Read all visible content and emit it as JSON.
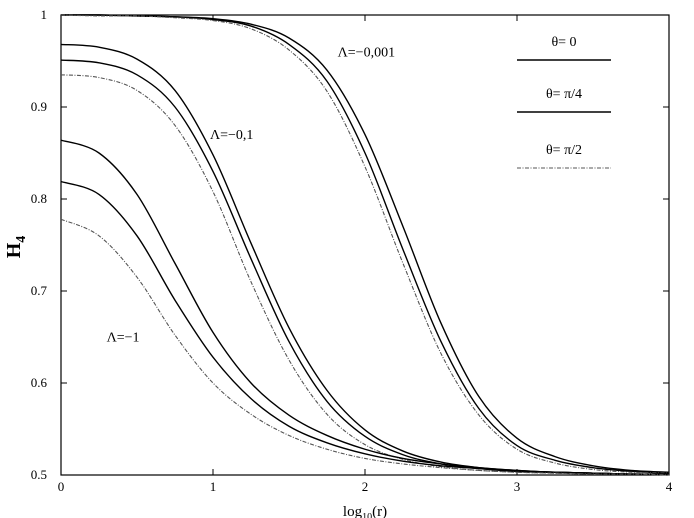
{
  "chart_data": {
    "type": "line",
    "title": "",
    "xlabel": {
      "base": "log",
      "sub": "10",
      "rest": "(r)"
    },
    "ylabel": {
      "base": "H",
      "sub": "4"
    },
    "xlim": [
      0,
      4
    ],
    "ylim": [
      0.5,
      1.0
    ],
    "x_ticks": [
      0,
      1,
      2,
      3,
      4
    ],
    "x_tick_labels": [
      "0",
      "1",
      "2",
      "3",
      "4"
    ],
    "y_ticks": [
      0.5,
      0.6,
      0.7,
      0.8,
      0.9,
      1.0
    ],
    "y_tick_labels": [
      "0.5",
      "0.6",
      "0.7",
      "0.8",
      "0.9",
      "1"
    ],
    "grid": false,
    "legend": {
      "placement": "top-right",
      "entries": [
        {
          "label": "θ= 0",
          "style": "solid",
          "color": "#000000"
        },
        {
          "label": "θ= π/4",
          "style": "solid",
          "color": "#111111"
        },
        {
          "label": "θ= π/2",
          "style": "dashdot",
          "color": "#555555"
        }
      ]
    },
    "annotations": [
      {
        "text": "Λ=−0,001",
        "x": 1.82,
        "y": 0.955
      },
      {
        "text": "Λ=−0,1",
        "x": 0.98,
        "y": 0.865
      },
      {
        "text": "Λ=−1",
        "x": 0.3,
        "y": 0.645
      }
    ],
    "x": [
      0,
      0.25,
      0.5,
      0.75,
      1,
      1.25,
      1.5,
      1.75,
      2,
      2.25,
      2.5,
      2.75,
      3,
      3.25,
      3.5,
      3.75,
      4
    ],
    "series": [
      {
        "group": "Λ=−0,001",
        "style": "solid",
        "values": [
          1.0,
          1.0,
          0.999,
          0.998,
          0.996,
          0.99,
          0.975,
          0.94,
          0.87,
          0.77,
          0.665,
          0.585,
          0.54,
          0.52,
          0.51,
          0.505,
          0.503
        ]
      },
      {
        "group": "Λ=−0,001",
        "style": "solid",
        "values": [
          1.0,
          1.0,
          0.999,
          0.998,
          0.995,
          0.988,
          0.968,
          0.928,
          0.85,
          0.745,
          0.645,
          0.572,
          0.532,
          0.516,
          0.508,
          0.504,
          0.502
        ]
      },
      {
        "group": "Λ=−0,001",
        "style": "dashdot",
        "values": [
          1.0,
          0.999,
          0.999,
          0.997,
          0.994,
          0.985,
          0.962,
          0.917,
          0.835,
          0.73,
          0.632,
          0.565,
          0.528,
          0.513,
          0.506,
          0.503,
          0.502
        ]
      },
      {
        "group": "Λ=−0,1",
        "style": "solid",
        "values": [
          0.968,
          0.965,
          0.952,
          0.918,
          0.848,
          0.752,
          0.66,
          0.592,
          0.549,
          0.526,
          0.514,
          0.508,
          0.505,
          0.503,
          0.502,
          0.501,
          0.501
        ]
      },
      {
        "group": "Λ=−0,1",
        "style": "solid",
        "values": [
          0.951,
          0.948,
          0.935,
          0.9,
          0.83,
          0.735,
          0.645,
          0.58,
          0.542,
          0.522,
          0.512,
          0.507,
          0.504,
          0.503,
          0.502,
          0.501,
          0.501
        ]
      },
      {
        "group": "Λ=−0,1",
        "style": "dashdot",
        "values": [
          0.935,
          0.932,
          0.918,
          0.88,
          0.808,
          0.71,
          0.625,
          0.566,
          0.533,
          0.517,
          0.509,
          0.505,
          0.503,
          0.502,
          0.501,
          0.501,
          0.5
        ]
      },
      {
        "group": "Λ=−1",
        "style": "solid",
        "values": [
          0.864,
          0.85,
          0.805,
          0.73,
          0.655,
          0.6,
          0.565,
          0.543,
          0.528,
          0.518,
          0.512,
          0.508,
          0.505,
          0.503,
          0.502,
          0.501,
          0.501
        ]
      },
      {
        "group": "Λ=−1",
        "style": "solid",
        "values": [
          0.819,
          0.805,
          0.76,
          0.69,
          0.628,
          0.583,
          0.553,
          0.535,
          0.523,
          0.515,
          0.51,
          0.507,
          0.504,
          0.503,
          0.502,
          0.501,
          0.501
        ]
      },
      {
        "group": "Λ=−1",
        "style": "dashdot",
        "values": [
          0.778,
          0.76,
          0.715,
          0.652,
          0.6,
          0.566,
          0.543,
          0.528,
          0.518,
          0.512,
          0.508,
          0.505,
          0.503,
          0.502,
          0.501,
          0.501,
          0.5
        ]
      }
    ]
  }
}
